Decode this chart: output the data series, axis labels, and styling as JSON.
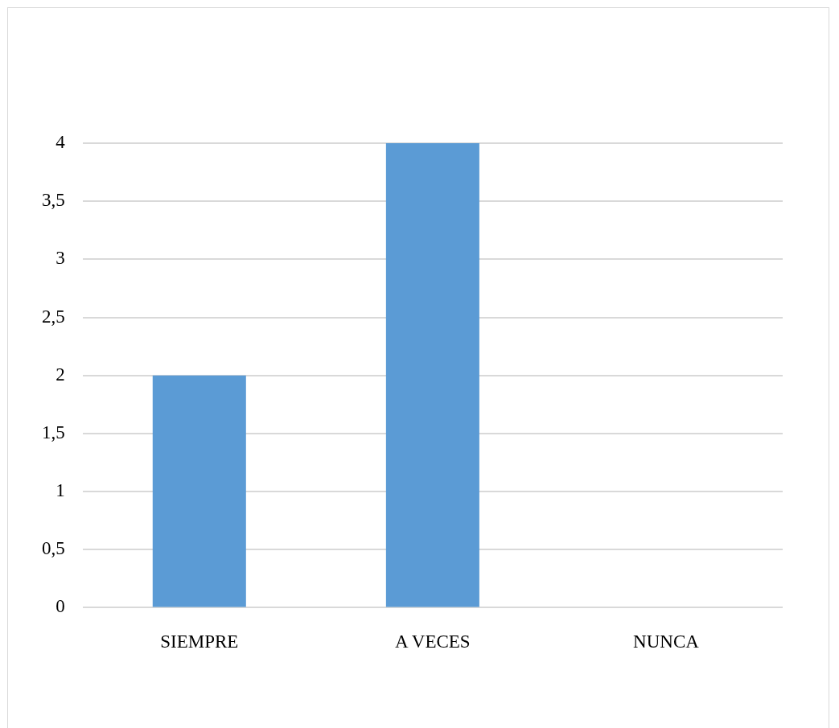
{
  "chart_data": {
    "type": "bar",
    "categories": [
      "SIEMPRE",
      "A VECES",
      "NUNCA"
    ],
    "values": [
      2,
      4,
      0
    ],
    "color": "#5b9bd5",
    "ylim": [
      0,
      4
    ],
    "yticks": [
      0,
      {
        "value": 0.5,
        "label": "0,5"
      },
      1,
      {
        "value": 1.5,
        "label": "1,5"
      },
      2,
      {
        "value": 2.5,
        "label": "2,5"
      },
      3,
      {
        "value": 3.5,
        "label": "3,5"
      },
      4
    ],
    "grid": "y",
    "legend": false
  }
}
